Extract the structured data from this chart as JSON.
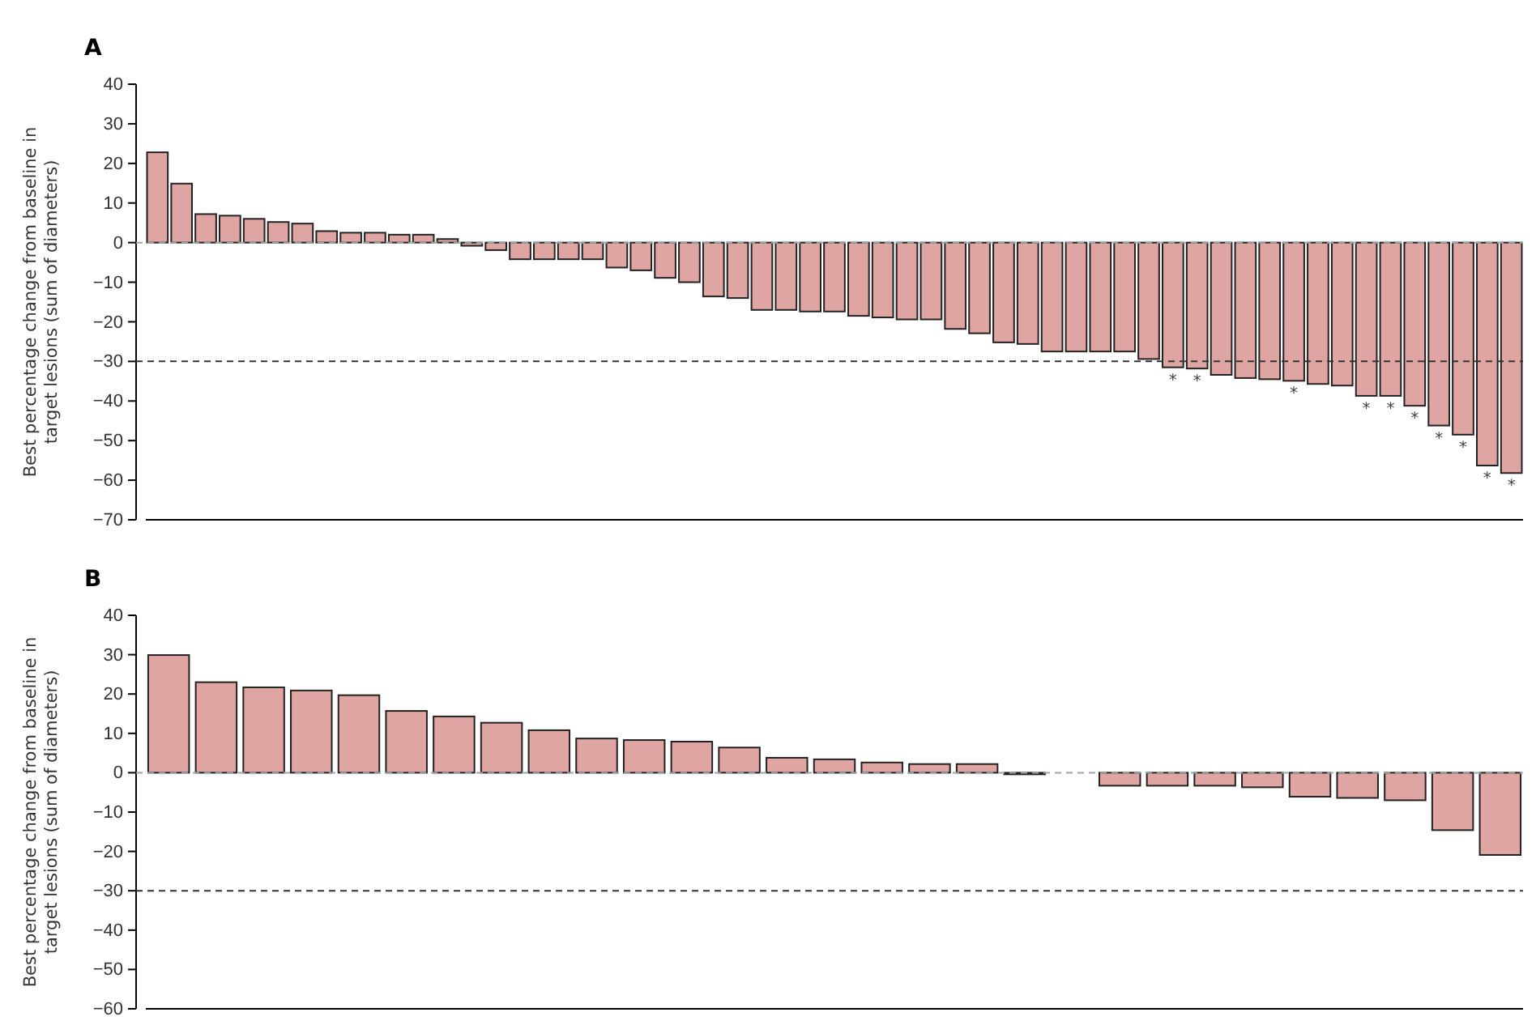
{
  "chart_data": [
    {
      "type": "bar",
      "title": "A",
      "ylabel": "Best percentage change from baseline in target lesions (sum of diameters)",
      "categories": [
        null,
        null,
        null,
        null,
        null,
        null,
        null,
        null,
        null,
        null,
        null,
        null,
        null,
        null,
        null,
        null,
        null,
        null,
        null,
        null,
        null,
        null,
        null,
        null,
        null,
        null,
        null,
        null,
        null,
        null,
        null,
        null,
        null,
        null,
        null,
        null,
        null,
        null,
        null,
        null,
        null,
        null,
        null,
        null,
        null,
        null,
        null,
        null,
        null,
        null,
        null,
        null,
        null,
        null,
        null,
        null,
        null
      ],
      "values": [
        22.8,
        14.9,
        7.2,
        6.8,
        6.0,
        5.2,
        4.8,
        2.9,
        2.5,
        2.5,
        2.0,
        2.0,
        0.9,
        -0.8,
        -1.9,
        -4.2,
        -4.2,
        -4.2,
        -4.2,
        -6.3,
        -7.0,
        -8.9,
        -10.0,
        -13.6,
        -14.0,
        -17.0,
        -17.0,
        -17.4,
        -17.4,
        -18.5,
        -18.9,
        -19.4,
        -19.4,
        -21.8,
        -22.9,
        -25.2,
        -25.6,
        -27.5,
        -27.5,
        -27.5,
        -27.5,
        -29.4,
        -31.5,
        -31.8,
        -33.4,
        -34.2,
        -34.5,
        -34.9,
        -35.7,
        -36.1,
        -38.7,
        -38.7,
        -41.2,
        -46.2,
        -48.5,
        -56.3,
        -58.2
      ],
      "value_labels": [
        null,
        null,
        null,
        null,
        null,
        null,
        null,
        null,
        null,
        null,
        null,
        null,
        null,
        null,
        null,
        null,
        null,
        null,
        null,
        null,
        null,
        null,
        null,
        null,
        null,
        null,
        null,
        null,
        null,
        null,
        null,
        null,
        null,
        null,
        null,
        null,
        null,
        null,
        null,
        null,
        null,
        null,
        "*",
        "*",
        null,
        null,
        null,
        "*",
        null,
        null,
        "*",
        "*",
        "*",
        "*",
        "*",
        "*",
        "*"
      ],
      "color": "#dfa5a2",
      "ylim": [
        -70,
        40
      ],
      "yticks": [
        40,
        30,
        20,
        10,
        0,
        -10,
        -20,
        -30,
        -40,
        -50,
        -60,
        -70
      ],
      "ref_lines": [
        {
          "axis": "y",
          "value": 0,
          "color": "#9aa6a8",
          "line_style": "dashed"
        },
        {
          "axis": "y",
          "value": -30,
          "color": "#333333",
          "line_style": "dashed"
        }
      ]
    },
    {
      "type": "bar",
      "title": "B",
      "ylabel": "Best percentage change from baseline in target lesions (sum of diameters)",
      "categories": [
        null,
        null,
        null,
        null,
        null,
        null,
        null,
        null,
        null,
        null,
        null,
        null,
        null,
        null,
        null,
        null,
        null,
        null,
        null,
        null,
        null,
        null,
        null,
        null,
        null,
        null,
        null,
        null,
        null
      ],
      "values": [
        29.9,
        23.0,
        21.7,
        20.9,
        19.7,
        15.7,
        14.3,
        12.7,
        10.8,
        8.7,
        8.3,
        7.9,
        6.4,
        3.8,
        3.4,
        2.6,
        2.2,
        2.2,
        -0.4,
        0,
        -3.3,
        -3.3,
        -3.3,
        -3.7,
        -6.1,
        -6.4,
        -7.0,
        -14.6,
        -20.9
      ],
      "color": "#dfa5a2",
      "ylim": [
        -60,
        40
      ],
      "yticks": [
        40,
        30,
        20,
        10,
        0,
        -10,
        -20,
        -30,
        -40,
        -50,
        -60
      ],
      "ref_lines": [
        {
          "axis": "y",
          "value": 0,
          "color": "#9aa6a8",
          "line_style": "dashed"
        },
        {
          "axis": "y",
          "value": -30,
          "color": "#333333",
          "line_style": "dashed"
        }
      ]
    }
  ]
}
